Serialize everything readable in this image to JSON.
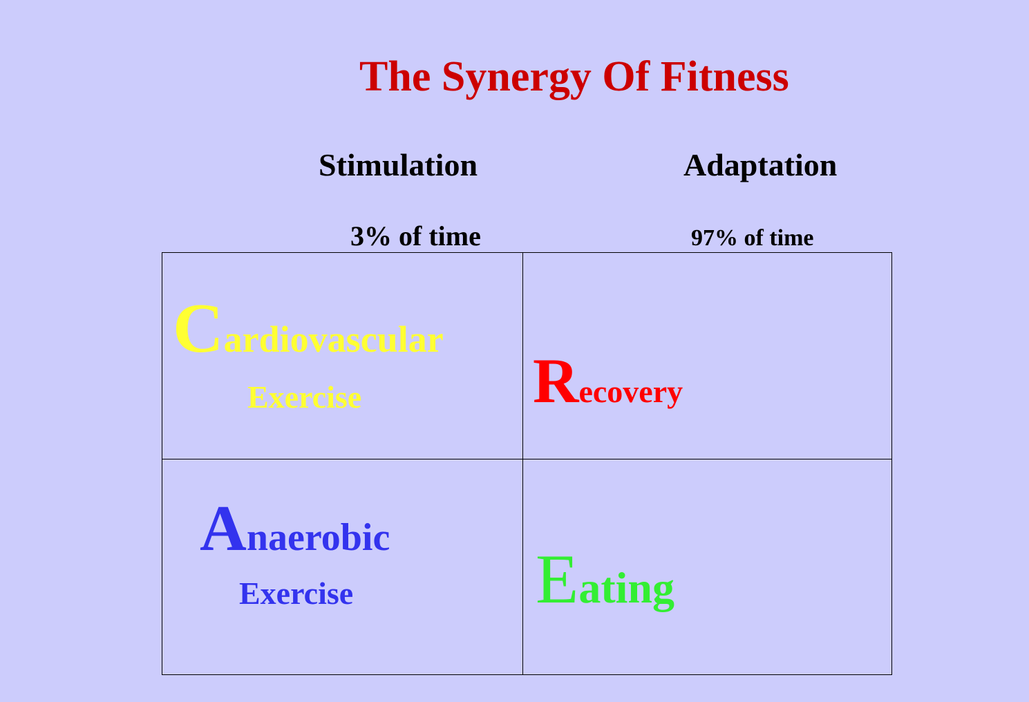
{
  "title": "The Synergy Of Fitness",
  "columns": {
    "stimulation": {
      "label": "Stimulation",
      "time": "3% of time"
    },
    "adaptation": {
      "label": "Adaptation",
      "time": "97% of time"
    }
  },
  "cells": {
    "cardiovascular": {
      "initial": "C",
      "rest": "ardiovascular",
      "sub": "Exercise",
      "color": "#ffff33"
    },
    "recovery": {
      "initial": "R",
      "rest": "ecovery",
      "color": "#ff0000"
    },
    "anaerobic": {
      "initial": "A",
      "rest": "naerobic",
      "sub": "Exercise",
      "color": "#3333ee"
    },
    "eating": {
      "initial": "E",
      "rest": "ating",
      "color": "#33ee33"
    }
  },
  "colors": {
    "background": "#ccccfc",
    "title": "#cc0000",
    "text": "#000000"
  }
}
